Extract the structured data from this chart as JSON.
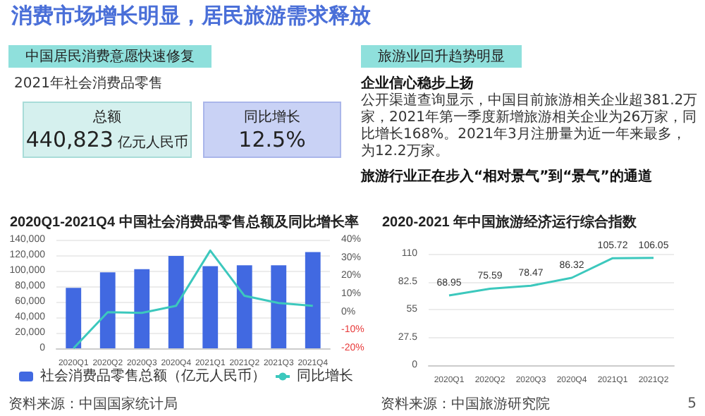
{
  "chart_data": [
    {
      "type": "other",
      "title": "消费市场增长明显，居民旅游需求释放",
      "annotations": [
        "5"
      ]
    },
    {
      "type": "other",
      "title": "中国居民消费意愿快速修复",
      "annotations": [
        "2021年社会消费品零售",
        "总额",
        "440,823",
        "亿元人民币",
        "同比增长",
        "12.5%"
      ]
    },
    {
      "type": "other",
      "title": "旅游业回升趋势明显",
      "annotations": [
        "企业信心稳步上扬",
        "公开渠道查询显示，中国目前旅游相关企业超381.2万家，2021年第一季度新增旅游相关企业为26万家，同比增长168%。2021年3月注册量为近一年来最多，为12.2万家。",
        "旅游行业正在步入“相对景气”到“景气”的通道"
      ]
    },
    {
      "type": "bar",
      "title": "2020Q1-2021Q4 中国社会消费品零售总额及同比增长率",
      "categories": [
        "2020Q1",
        "2020Q2",
        "2020Q3",
        "2020Q4",
        "2021Q1",
        "2021Q2",
        "2021Q3",
        "2021Q4"
      ],
      "series": [
        {
          "name": "社会消费品零售总额（亿元人民币）",
          "type": "bar",
          "color": "#4169e1",
          "values": [
            78000,
            98000,
            102000,
            119000,
            106000,
            107000,
            107000,
            124000
          ]
        },
        {
          "name": "同比增长",
          "type": "line",
          "axis": "y2",
          "color": "#3cc8bd",
          "values": [
            -20,
            0,
            -0.4,
            3.5,
            34,
            9,
            5,
            3.5
          ]
        }
      ],
      "ylim": [
        0,
        140000
      ],
      "yticks": [
        {
          "value": 0,
          "label": "0"
        },
        {
          "value": 20000,
          "label": "20,000"
        },
        {
          "value": 40000,
          "label": "40,000"
        },
        {
          "value": 60000,
          "label": "60,000"
        },
        {
          "value": 80000,
          "label": "80,000"
        },
        {
          "value": 100000,
          "label": "100,000"
        },
        {
          "value": 120000,
          "label": "120,000"
        },
        {
          "value": 140000,
          "label": "140,000"
        }
      ],
      "y2lim": [
        -20,
        40
      ],
      "y2ticks": [
        {
          "value": -20,
          "label": "-20%"
        },
        {
          "value": -10,
          "label": "-10%"
        },
        {
          "value": 0,
          "label": "0%"
        },
        {
          "value": 10,
          "label": "10%"
        },
        {
          "value": 20,
          "label": "20%"
        },
        {
          "value": 30,
          "label": "30%"
        },
        {
          "value": 40,
          "label": "40%"
        }
      ],
      "grid": "y",
      "legend": "bottom",
      "marker": "none",
      "annotations": [
        "资料来源：中国国家统计局"
      ]
    },
    {
      "type": "line",
      "title": "2020-2021 年中国旅游经济运行综合指数",
      "categories": [
        "2020Q1",
        "2020Q2",
        "2020Q3",
        "2020Q4",
        "2021Q1",
        "2021Q2"
      ],
      "series": [
        {
          "color": "#3cc8bd",
          "values": [
            68.95,
            75.59,
            78.47,
            86.32,
            105.72,
            106.05
          ]
        }
      ],
      "ylim": [
        0,
        110
      ],
      "yticks": [
        0,
        27.5,
        55,
        82.5,
        110
      ],
      "grid": "y",
      "marker": "none",
      "data_labels": true,
      "annotations": [
        "资料来源：中国旅游研究院"
      ]
    }
  ]
}
